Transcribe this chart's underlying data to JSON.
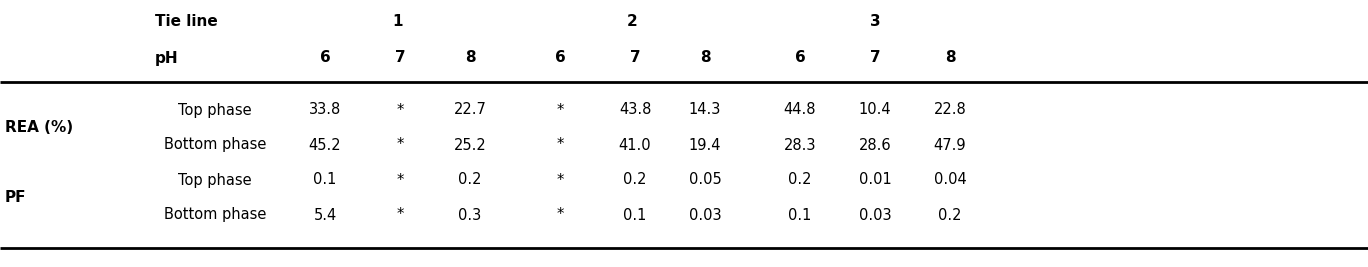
{
  "tie_line_label": "Tie line",
  "tie_line_values": [
    "1",
    "2",
    "3"
  ],
  "ph_label": "pH",
  "ph_values": [
    "6",
    "7",
    "8",
    "6",
    "7",
    "8",
    "6",
    "7",
    "8"
  ],
  "row_group_labels": [
    "REA (%)",
    "PF"
  ],
  "row_labels": [
    "Top phase",
    "Bottom phase",
    "Top phase",
    "Bottom phase"
  ],
  "data": [
    [
      "33.8",
      "*",
      "22.7",
      "*",
      "43.8",
      "14.3",
      "44.8",
      "10.4",
      "22.8"
    ],
    [
      "45.2",
      "*",
      "25.2",
      "*",
      "41.0",
      "19.4",
      "28.3",
      "28.6",
      "47.9"
    ],
    [
      "0.1",
      "*",
      "0.2",
      "*",
      "0.2",
      "0.05",
      "0.2",
      "0.01",
      "0.04"
    ],
    [
      "5.4",
      "*",
      "0.3",
      "*",
      "0.1",
      "0.03",
      "0.1",
      "0.03",
      "0.2"
    ]
  ],
  "bg_color": "#ffffff",
  "text_color": "#000000",
  "line_color": "#000000",
  "fontsize": 10.5,
  "group_label_fontsize": 11,
  "header_fontsize": 11
}
